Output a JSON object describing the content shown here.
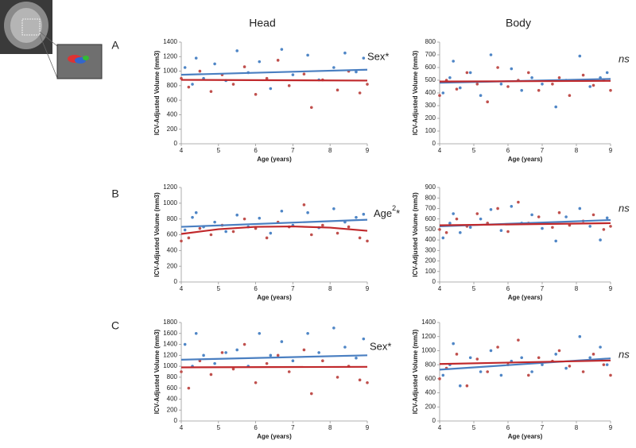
{
  "columns": [
    "Head",
    "Body"
  ],
  "row_labels": [
    "A",
    "B",
    "C"
  ],
  "chart_data": [
    {
      "type": "scatter",
      "xlabel": "Age (years)",
      "ylabel": "ICV-Adjusted Volume (mm3)",
      "annotation": "Sex*",
      "xlim": [
        4,
        9
      ],
      "xticks": [
        4,
        5,
        6,
        7,
        8,
        9
      ],
      "ylim": [
        0,
        1400
      ],
      "yticks": [
        0,
        200,
        400,
        600,
        800,
        1000,
        1200,
        1400
      ],
      "series": [
        {
          "color": "#4f86c6",
          "x": [
            4.1,
            4.3,
            4.4,
            4.6,
            4.9,
            5.2,
            5.5,
            5.8,
            6.1,
            6.4,
            6.7,
            7.0,
            7.4,
            7.7,
            8.1,
            8.4,
            8.7,
            8.9
          ],
          "values": [
            1050,
            820,
            1180,
            900,
            1100,
            870,
            1280,
            980,
            1130,
            760,
            1300,
            950,
            1220,
            880,
            1050,
            1250,
            990,
            1180
          ]
        },
        {
          "color": "#c0504d",
          "x": [
            4.0,
            4.2,
            4.5,
            4.8,
            5.1,
            5.4,
            5.7,
            6.0,
            6.3,
            6.6,
            6.9,
            7.3,
            7.5,
            7.8,
            8.2,
            8.5,
            8.8,
            9.0
          ],
          "values": [
            900,
            780,
            1000,
            720,
            950,
            820,
            1060,
            680,
            900,
            1150,
            800,
            960,
            500,
            880,
            740,
            1000,
            700,
            820
          ]
        }
      ],
      "fits": [
        {
          "color": "#4a7fc1",
          "x": [
            4,
            9
          ],
          "values": [
            950,
            1020
          ]
        },
        {
          "color": "#c0282b",
          "x": [
            4,
            9
          ],
          "values": [
            880,
            870
          ]
        }
      ]
    },
    {
      "type": "scatter",
      "xlabel": "Age (years)",
      "ylabel": "ICV-Adjusted Volume (mm3)",
      "annotation": "ns",
      "xlim": [
        4,
        9
      ],
      "xticks": [
        4,
        5,
        6,
        7,
        8,
        9
      ],
      "ylim": [
        0,
        800
      ],
      "yticks": [
        0,
        100,
        200,
        300,
        400,
        500,
        600,
        700,
        800
      ],
      "series": [
        {
          "color": "#4f86c6",
          "x": [
            4.1,
            4.3,
            4.4,
            4.6,
            4.9,
            5.2,
            5.5,
            5.8,
            6.1,
            6.4,
            6.7,
            7.0,
            7.4,
            7.7,
            8.1,
            8.4,
            8.7,
            8.9
          ],
          "values": [
            400,
            520,
            650,
            440,
            560,
            380,
            700,
            470,
            590,
            420,
            520,
            470,
            290,
            500,
            690,
            450,
            520,
            560
          ]
        },
        {
          "color": "#c0504d",
          "x": [
            4.0,
            4.2,
            4.5,
            4.8,
            5.1,
            5.4,
            5.7,
            6.0,
            6.3,
            6.6,
            6.9,
            7.3,
            7.5,
            7.8,
            8.2,
            8.5,
            8.8,
            9.0
          ],
          "values": [
            380,
            500,
            430,
            560,
            470,
            330,
            600,
            450,
            500,
            560,
            420,
            470,
            520,
            380,
            540,
            460,
            500,
            420
          ]
        }
      ],
      "fits": [
        {
          "color": "#4a7fc1",
          "x": [
            4,
            9
          ],
          "values": [
            480,
            510
          ]
        },
        {
          "color": "#c0282b",
          "x": [
            4,
            9
          ],
          "values": [
            490,
            495
          ]
        }
      ]
    },
    {
      "type": "scatter",
      "xlabel": "Age (years)",
      "ylabel": "ICV-Adjusted Volume (mm3)",
      "annotation": {
        "base": "Age",
        "superscript": "2",
        "mark": "*"
      },
      "xlim": [
        4,
        9
      ],
      "xticks": [
        4,
        5,
        6,
        7,
        8,
        9
      ],
      "ylim": [
        0,
        1200
      ],
      "yticks": [
        0,
        200,
        400,
        600,
        800,
        1000,
        1200
      ],
      "series": [
        {
          "color": "#4f86c6",
          "x": [
            4.1,
            4.3,
            4.4,
            4.6,
            4.9,
            5.2,
            5.5,
            5.8,
            6.1,
            6.4,
            6.7,
            7.0,
            7.4,
            7.7,
            8.1,
            8.4,
            8.7,
            8.9
          ],
          "values": [
            660,
            820,
            880,
            700,
            760,
            640,
            850,
            700,
            810,
            620,
            900,
            720,
            880,
            690,
            930,
            760,
            820,
            860
          ]
        },
        {
          "color": "#c0504d",
          "x": [
            4.0,
            4.2,
            4.5,
            4.8,
            5.1,
            5.4,
            5.7,
            6.0,
            6.3,
            6.6,
            6.9,
            7.3,
            7.5,
            7.8,
            8.2,
            8.5,
            8.8,
            9.0
          ],
          "values": [
            520,
            560,
            680,
            600,
            720,
            640,
            800,
            680,
            560,
            760,
            700,
            980,
            600,
            720,
            620,
            700,
            560,
            520
          ]
        }
      ],
      "fits": [
        {
          "color": "#4a7fc1",
          "x": [
            4,
            9
          ],
          "values": [
            700,
            790
          ]
        },
        {
          "color": "#c0282b",
          "x": [
            4,
            5,
            6,
            7,
            8,
            9
          ],
          "values": [
            610,
            670,
            700,
            705,
            690,
            650
          ]
        }
      ]
    },
    {
      "type": "scatter",
      "xlabel": "Age (years)",
      "ylabel": "ICV-Adjusted Volume (mm3)",
      "annotation": "ns",
      "xlim": [
        4,
        9
      ],
      "xticks": [
        4,
        5,
        6,
        7,
        8,
        9
      ],
      "ylim": [
        0,
        900
      ],
      "yticks": [
        0,
        100,
        200,
        300,
        400,
        500,
        600,
        700,
        800,
        900
      ],
      "series": [
        {
          "color": "#4f86c6",
          "x": [
            4.1,
            4.3,
            4.4,
            4.6,
            4.9,
            5.2,
            5.5,
            5.8,
            6.1,
            6.4,
            6.7,
            7.0,
            7.4,
            7.7,
            8.1,
            8.4,
            8.7,
            8.9
          ],
          "values": [
            420,
            560,
            650,
            470,
            520,
            600,
            690,
            490,
            720,
            560,
            640,
            510,
            390,
            620,
            700,
            530,
            400,
            610
          ]
        },
        {
          "color": "#c0504d",
          "x": [
            4.0,
            4.2,
            4.5,
            4.8,
            5.1,
            5.4,
            5.7,
            6.0,
            6.3,
            6.6,
            6.9,
            7.3,
            7.5,
            7.8,
            8.2,
            8.5,
            8.8,
            9.0
          ],
          "values": [
            500,
            470,
            600,
            530,
            650,
            560,
            700,
            480,
            760,
            560,
            620,
            520,
            660,
            540,
            580,
            640,
            500,
            530
          ]
        }
      ],
      "fits": [
        {
          "color": "#4a7fc1",
          "x": [
            4,
            9
          ],
          "values": [
            530,
            590
          ]
        },
        {
          "color": "#c0282b",
          "x": [
            4,
            9
          ],
          "values": [
            540,
            560
          ]
        }
      ]
    },
    {
      "type": "scatter",
      "xlabel": "Age (years)",
      "ylabel": "ICV-Adjusted Volume (mm3)",
      "annotation": "Sex*",
      "xlim": [
        4,
        9
      ],
      "xticks": [
        4,
        5,
        6,
        7,
        8,
        9
      ],
      "ylim": [
        0,
        1800
      ],
      "yticks": [
        0,
        200,
        400,
        600,
        800,
        1000,
        1200,
        1400,
        1600,
        1800
      ],
      "series": [
        {
          "color": "#4f86c6",
          "x": [
            4.1,
            4.3,
            4.4,
            4.6,
            4.9,
            5.2,
            5.5,
            5.8,
            6.1,
            6.4,
            6.7,
            7.0,
            7.4,
            7.7,
            8.1,
            8.4,
            8.7,
            8.9
          ],
          "values": [
            1400,
            1000,
            1600,
            1200,
            1050,
            1250,
            1300,
            1000,
            1600,
            1200,
            1450,
            1100,
            1600,
            1250,
            1700,
            1350,
            1150,
            1500
          ]
        },
        {
          "color": "#c0504d",
          "x": [
            4.0,
            4.2,
            4.5,
            4.8,
            5.1,
            5.4,
            5.7,
            6.0,
            6.3,
            6.6,
            6.9,
            7.3,
            7.5,
            7.8,
            8.2,
            8.5,
            8.8,
            9.0
          ],
          "values": [
            900,
            600,
            1100,
            850,
            1250,
            950,
            1400,
            700,
            1050,
            1200,
            900,
            1300,
            500,
            1100,
            800,
            1000,
            750,
            700
          ]
        }
      ],
      "fits": [
        {
          "color": "#4a7fc1",
          "x": [
            4,
            9
          ],
          "values": [
            1120,
            1200
          ]
        },
        {
          "color": "#c0282b",
          "x": [
            4,
            9
          ],
          "values": [
            980,
            990
          ]
        }
      ]
    },
    {
      "type": "scatter",
      "xlabel": "Age (years)",
      "ylabel": "ICV-Adjusted Volume (mm3)",
      "annotation": "ns",
      "xlim": [
        4,
        9
      ],
      "xticks": [
        4,
        5,
        6,
        7,
        8,
        9
      ],
      "ylim": [
        0,
        1400
      ],
      "yticks": [
        0,
        200,
        400,
        600,
        800,
        1000,
        1200,
        1400
      ],
      "series": [
        {
          "color": "#4f86c6",
          "x": [
            4.1,
            4.3,
            4.4,
            4.6,
            4.9,
            5.2,
            5.5,
            5.8,
            6.1,
            6.4,
            6.7,
            7.0,
            7.4,
            7.7,
            8.1,
            8.4,
            8.7,
            8.9
          ],
          "values": [
            650,
            800,
            1100,
            500,
            900,
            700,
            1000,
            650,
            850,
            900,
            700,
            800,
            950,
            750,
            1200,
            900,
            1050,
            800
          ]
        },
        {
          "color": "#c0504d",
          "x": [
            4.0,
            4.2,
            4.5,
            4.8,
            5.1,
            5.4,
            5.7,
            6.0,
            6.3,
            6.6,
            6.9,
            7.3,
            7.5,
            7.8,
            8.2,
            8.5,
            8.8,
            9.0
          ],
          "values": [
            600,
            750,
            950,
            500,
            880,
            700,
            1050,
            800,
            1150,
            650,
            900,
            850,
            1000,
            780,
            700,
            950,
            800,
            650
          ]
        }
      ],
      "fits": [
        {
          "color": "#4a7fc1",
          "x": [
            4,
            9
          ],
          "values": [
            730,
            890
          ]
        },
        {
          "color": "#c0282b",
          "x": [
            4,
            9
          ],
          "values": [
            810,
            860
          ]
        }
      ]
    }
  ]
}
